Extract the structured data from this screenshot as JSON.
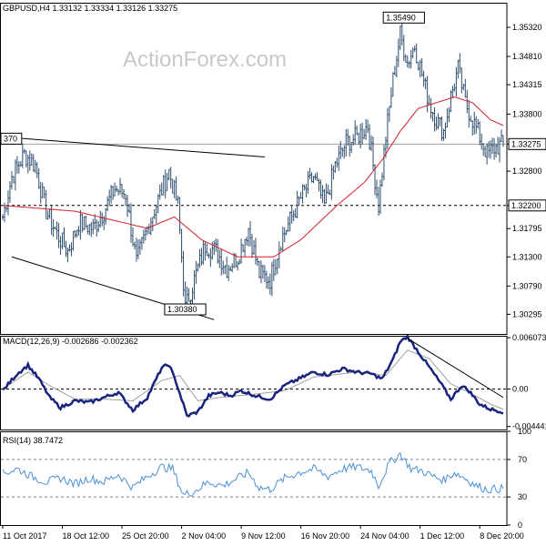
{
  "chart_data": {
    "type": "candlestick",
    "watermark": "ActionForex.com",
    "x_ticks": [
      {
        "i": 0,
        "label": "11 Oct 2017"
      },
      {
        "i": 33,
        "label": "18 Oct 12:00"
      },
      {
        "i": 66,
        "label": "25 Oct 20:00"
      },
      {
        "i": 99,
        "label": "2 Nov 04:00"
      },
      {
        "i": 132,
        "label": "9 Nov 12:00"
      },
      {
        "i": 165,
        "label": "16 Nov 20:00"
      },
      {
        "i": 198,
        "label": "24 Nov 04:00"
      },
      {
        "i": 231,
        "label": "1 Dec 12:00"
      },
      {
        "i": 264,
        "label": "8 Dec 20:00"
      }
    ],
    "bar_count": 278,
    "price_panel": {
      "header": "GBPUSD,H4  1.33132 1.33334 1.33126 1.33275",
      "ylim": [
        1.2995,
        1.3575
      ],
      "y_ticks": [
        "1.35320",
        "1.34810",
        "1.34315",
        "1.33800",
        "1.33275",
        "1.32800",
        "1.32200",
        "1.31795",
        "1.31300",
        "1.30790",
        "1.30295"
      ],
      "current_price": "1.33275",
      "level_line": "1.32200",
      "annotations": [
        {
          "label": "1.35490",
          "value": 1.3549,
          "i": 222
        },
        {
          "label": "1.30380",
          "value": 1.3038,
          "i": 101
        },
        {
          "label": "370",
          "value": 1.3337,
          "i": 0
        }
      ],
      "close_anchors": [
        [
          0,
          1.32
        ],
        [
          5,
          1.327
        ],
        [
          12,
          1.331
        ],
        [
          18,
          1.329
        ],
        [
          24,
          1.321
        ],
        [
          30,
          1.317
        ],
        [
          36,
          1.314
        ],
        [
          42,
          1.319
        ],
        [
          50,
          1.318
        ],
        [
          56,
          1.321
        ],
        [
          62,
          1.325
        ],
        [
          68,
          1.324
        ],
        [
          74,
          1.312
        ],
        [
          80,
          1.318
        ],
        [
          86,
          1.323
        ],
        [
          92,
          1.328
        ],
        [
          97,
          1.322
        ],
        [
          101,
          1.304
        ],
        [
          106,
          1.309
        ],
        [
          112,
          1.315
        ],
        [
          118,
          1.314
        ],
        [
          124,
          1.311
        ],
        [
          130,
          1.313
        ],
        [
          136,
          1.318
        ],
        [
          142,
          1.31
        ],
        [
          148,
          1.309
        ],
        [
          154,
          1.316
        ],
        [
          160,
          1.32
        ],
        [
          166,
          1.324
        ],
        [
          172,
          1.327
        ],
        [
          178,
          1.322
        ],
        [
          184,
          1.329
        ],
        [
          190,
          1.333
        ],
        [
          196,
          1.334
        ],
        [
          202,
          1.336
        ],
        [
          208,
          1.322
        ],
        [
          212,
          1.334
        ],
        [
          216,
          1.344
        ],
        [
          220,
          1.352
        ],
        [
          224,
          1.347
        ],
        [
          228,
          1.35
        ],
        [
          232,
          1.345
        ],
        [
          236,
          1.34
        ],
        [
          240,
          1.337
        ],
        [
          244,
          1.335
        ],
        [
          248,
          1.341
        ],
        [
          252,
          1.346
        ],
        [
          256,
          1.34
        ],
        [
          260,
          1.337
        ],
        [
          264,
          1.334
        ],
        [
          268,
          1.331
        ],
        [
          272,
          1.332
        ],
        [
          277,
          1.3328
        ]
      ],
      "ma_anchors": [
        [
          0,
          1.322
        ],
        [
          40,
          1.321
        ],
        [
          80,
          1.318
        ],
        [
          95,
          1.32
        ],
        [
          110,
          1.316
        ],
        [
          130,
          1.313
        ],
        [
          150,
          1.313
        ],
        [
          165,
          1.316
        ],
        [
          185,
          1.322
        ],
        [
          200,
          1.326
        ],
        [
          210,
          1.33
        ],
        [
          220,
          1.335
        ],
        [
          230,
          1.339
        ],
        [
          240,
          1.34
        ],
        [
          250,
          1.341
        ],
        [
          260,
          1.34
        ],
        [
          270,
          1.337
        ],
        [
          277,
          1.336
        ]
      ],
      "trendlines": [
        {
          "from": [
            0,
            1.334
          ],
          "to": [
            145,
            1.3305
          ]
        },
        {
          "from": [
            5,
            1.313
          ],
          "to": [
            117,
            1.302
          ]
        }
      ]
    },
    "macd_panel": {
      "header": "MACD(12,26,9) -0.002686 -0.002362",
      "ylim": [
        -0.0048,
        0.0063
      ],
      "y_ticks": [
        "0.006073",
        "0.00",
        "-0.004441"
      ],
      "macd_anchors": [
        [
          0,
          -0.0002
        ],
        [
          8,
          0.0018
        ],
        [
          14,
          0.0028
        ],
        [
          20,
          0.0012
        ],
        [
          26,
          -0.001
        ],
        [
          32,
          -0.0022
        ],
        [
          40,
          -0.0014
        ],
        [
          48,
          -0.0016
        ],
        [
          56,
          -0.001
        ],
        [
          64,
          -0.0004
        ],
        [
          72,
          -0.0025
        ],
        [
          80,
          -0.001
        ],
        [
          88,
          0.0025
        ],
        [
          92,
          0.0029
        ],
        [
          96,
          0.0008
        ],
        [
          102,
          -0.0032
        ],
        [
          108,
          -0.0027
        ],
        [
          114,
          -0.0008
        ],
        [
          120,
          -0.0004
        ],
        [
          126,
          -0.0008
        ],
        [
          132,
          -0.0002
        ],
        [
          140,
          -0.0008
        ],
        [
          148,
          -0.0012
        ],
        [
          156,
          0.0004
        ],
        [
          164,
          0.0012
        ],
        [
          172,
          0.002
        ],
        [
          180,
          0.0017
        ],
        [
          188,
          0.0024
        ],
        [
          196,
          0.002
        ],
        [
          204,
          0.0018
        ],
        [
          210,
          0.0012
        ],
        [
          216,
          0.0035
        ],
        [
          220,
          0.0056
        ],
        [
          224,
          0.0062
        ],
        [
          230,
          0.0044
        ],
        [
          236,
          0.0026
        ],
        [
          242,
          0.0008
        ],
        [
          248,
          -0.0012
        ],
        [
          254,
          0.0004
        ],
        [
          258,
          -0.0002
        ],
        [
          264,
          -0.0018
        ],
        [
          270,
          -0.0024
        ],
        [
          277,
          -0.0027
        ]
      ],
      "signal_anchors": [
        [
          0,
          0.0
        ],
        [
          14,
          0.002
        ],
        [
          26,
          0.0004
        ],
        [
          40,
          -0.0012
        ],
        [
          56,
          -0.0012
        ],
        [
          72,
          -0.0014
        ],
        [
          88,
          0.001
        ],
        [
          98,
          0.0016
        ],
        [
          108,
          -0.0014
        ],
        [
          120,
          -0.001
        ],
        [
          140,
          -0.0006
        ],
        [
          156,
          -0.0002
        ],
        [
          172,
          0.0014
        ],
        [
          196,
          0.002
        ],
        [
          212,
          0.0016
        ],
        [
          224,
          0.0046
        ],
        [
          236,
          0.0036
        ],
        [
          248,
          0.0006
        ],
        [
          258,
          -0.0004
        ],
        [
          270,
          -0.0018
        ],
        [
          277,
          -0.0024
        ]
      ],
      "trendline": {
        "from": [
          224,
          0.006
        ],
        "to": [
          277,
          -0.001
        ]
      }
    },
    "rsi_panel": {
      "header": "RSI(14) 38.7472",
      "ylim": [
        0,
        100
      ],
      "y_ticks": [
        100,
        70,
        30,
        0
      ],
      "reference_levels": [
        70,
        30
      ],
      "rsi_anchors": [
        [
          0,
          55
        ],
        [
          8,
          60
        ],
        [
          16,
          52
        ],
        [
          24,
          46
        ],
        [
          32,
          50
        ],
        [
          40,
          44
        ],
        [
          48,
          50
        ],
        [
          56,
          46
        ],
        [
          64,
          54
        ],
        [
          72,
          40
        ],
        [
          80,
          52
        ],
        [
          88,
          62
        ],
        [
          94,
          60
        ],
        [
          100,
          32
        ],
        [
          106,
          36
        ],
        [
          114,
          46
        ],
        [
          122,
          42
        ],
        [
          130,
          50
        ],
        [
          136,
          56
        ],
        [
          142,
          40
        ],
        [
          148,
          38
        ],
        [
          156,
          50
        ],
        [
          164,
          56
        ],
        [
          172,
          60
        ],
        [
          180,
          52
        ],
        [
          188,
          60
        ],
        [
          196,
          62
        ],
        [
          204,
          58
        ],
        [
          208,
          42
        ],
        [
          214,
          66
        ],
        [
          220,
          76
        ],
        [
          226,
          60
        ],
        [
          232,
          58
        ],
        [
          238,
          52
        ],
        [
          244,
          48
        ],
        [
          250,
          56
        ],
        [
          256,
          50
        ],
        [
          262,
          42
        ],
        [
          268,
          38
        ],
        [
          277,
          39
        ]
      ]
    }
  }
}
